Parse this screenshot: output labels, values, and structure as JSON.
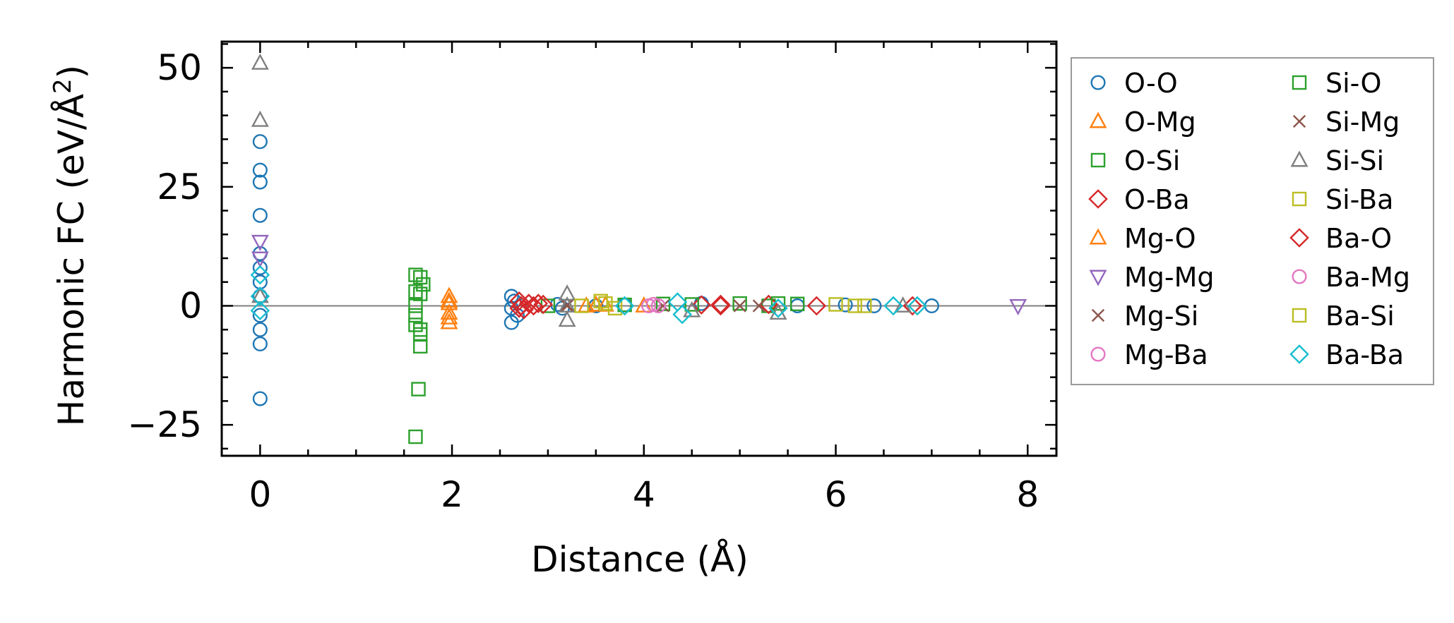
{
  "chart_data": {
    "type": "scatter",
    "title": "",
    "xlabel": "Distance (Å)",
    "ylabel_prefix": "Harmonic FC (eV/Å",
    "ylabel_sup": "2",
    "ylabel_suffix": ")",
    "xlim": [
      -0.4,
      8.3
    ],
    "ylim": [
      -31.5,
      55.5
    ],
    "xticks": [
      0,
      2,
      4,
      6,
      8
    ],
    "xtick_labels": [
      "0",
      "2",
      "4",
      "6",
      "8"
    ],
    "yticks": [
      50,
      25,
      0,
      -25
    ],
    "ytick_labels": [
      "50",
      "25",
      "0",
      "−25"
    ],
    "zero_line": true,
    "grid": false,
    "legend_position": "outside-right",
    "series": [
      {
        "name": "O-O",
        "marker": "circle",
        "color": "#1f77b4",
        "points": [
          [
            0,
            34.5
          ],
          [
            0,
            28.5
          ],
          [
            0,
            26
          ],
          [
            0,
            19
          ],
          [
            0,
            11
          ],
          [
            0,
            8
          ],
          [
            0,
            5
          ],
          [
            0,
            2
          ],
          [
            0,
            -2
          ],
          [
            0,
            -5
          ],
          [
            0,
            -8
          ],
          [
            0,
            -19.5
          ],
          [
            2.62,
            2
          ],
          [
            2.62,
            -0.5
          ],
          [
            2.62,
            -3.5
          ],
          [
            2.65,
            1
          ],
          [
            2.68,
            -2
          ],
          [
            3.1,
            0.3
          ],
          [
            3.15,
            -0.5
          ],
          [
            3.5,
            0
          ],
          [
            3.8,
            0.2
          ],
          [
            4.6,
            0.5
          ],
          [
            5.6,
            0
          ],
          [
            6.1,
            0.2
          ],
          [
            6.4,
            0
          ],
          [
            7.0,
            0
          ]
        ]
      },
      {
        "name": "O-Mg",
        "marker": "triangle-up",
        "color": "#ff7f0e",
        "points": [
          [
            1.97,
            2
          ],
          [
            1.97,
            0.5
          ],
          [
            1.97,
            -1.5
          ],
          [
            1.97,
            -3.5
          ],
          [
            3.4,
            0
          ],
          [
            3.6,
            0.2
          ],
          [
            4.0,
            0
          ]
        ]
      },
      {
        "name": "O-Si",
        "marker": "square",
        "color": "#2ca02c",
        "points": [
          [
            1.62,
            6.5
          ],
          [
            1.62,
            3
          ],
          [
            1.62,
            0
          ],
          [
            1.62,
            -4
          ],
          [
            1.62,
            -27.5
          ],
          [
            1.65,
            -17.5
          ],
          [
            1.67,
            6
          ],
          [
            1.67,
            2.5
          ],
          [
            1.67,
            -6
          ],
          [
            1.67,
            -8.5
          ],
          [
            1.7,
            4.5
          ],
          [
            3.0,
            0
          ],
          [
            3.8,
            0.2
          ],
          [
            4.2,
            0.4
          ],
          [
            5.0,
            0.5
          ],
          [
            5.3,
            0
          ],
          [
            5.6,
            0.4
          ]
        ]
      },
      {
        "name": "O-Ba",
        "marker": "diamond",
        "color": "#d62728",
        "points": [
          [
            2.7,
            1
          ],
          [
            2.72,
            0
          ],
          [
            2.75,
            -0.8
          ],
          [
            2.8,
            0.5
          ],
          [
            2.85,
            0
          ],
          [
            2.95,
            0.3
          ],
          [
            4.6,
            0.2
          ],
          [
            4.8,
            0
          ],
          [
            5.3,
            0.3
          ],
          [
            5.8,
            0
          ],
          [
            6.8,
            0
          ]
        ]
      },
      {
        "name": "Mg-O",
        "marker": "triangle-up",
        "color": "#ff7f0e",
        "points": [
          [
            1.97,
            1
          ],
          [
            1.97,
            -2.5
          ],
          [
            3.5,
            0.2
          ]
        ]
      },
      {
        "name": "Mg-Mg",
        "marker": "triangle-down",
        "color": "#9467bd",
        "points": [
          [
            0,
            13.5
          ],
          [
            0,
            10
          ],
          [
            7.9,
            0
          ]
        ]
      },
      {
        "name": "Mg-Si",
        "marker": "x",
        "color": "#8c564b",
        "points": [
          [
            3.2,
            0
          ],
          [
            4.2,
            0
          ],
          [
            5.2,
            0
          ]
        ]
      },
      {
        "name": "Mg-Ba",
        "marker": "circle",
        "color": "#e377c2",
        "points": [
          [
            4.05,
            0
          ],
          [
            4.15,
            0
          ]
        ]
      },
      {
        "name": "Si-O",
        "marker": "square",
        "color": "#2ca02c",
        "points": [
          [
            1.62,
            -2
          ],
          [
            1.67,
            -5
          ],
          [
            4.5,
            0.3
          ],
          [
            5.4,
            0.5
          ]
        ]
      },
      {
        "name": "Si-Mg",
        "marker": "x",
        "color": "#8c564b",
        "points": [
          [
            3.2,
            0.2
          ],
          [
            5.0,
            0
          ]
        ]
      },
      {
        "name": "Si-Si",
        "marker": "triangle-up",
        "color": "#7f7f7f",
        "points": [
          [
            0,
            51
          ],
          [
            0,
            39
          ],
          [
            0,
            2
          ],
          [
            3.2,
            2.5
          ],
          [
            3.2,
            -3
          ],
          [
            3.2,
            0
          ],
          [
            4.5,
            -1
          ],
          [
            5.4,
            -1.5
          ],
          [
            6.7,
            0
          ]
        ]
      },
      {
        "name": "Si-Ba",
        "marker": "square",
        "color": "#bcbd22",
        "points": [
          [
            3.35,
            0
          ],
          [
            3.55,
            1
          ],
          [
            3.7,
            -0.5
          ],
          [
            6.0,
            0.3
          ],
          [
            6.3,
            0
          ]
        ]
      },
      {
        "name": "Ba-O",
        "marker": "diamond",
        "color": "#d62728",
        "points": [
          [
            2.7,
            -0.5
          ],
          [
            2.9,
            0.5
          ],
          [
            4.8,
            0.3
          ]
        ]
      },
      {
        "name": "Ba-Mg",
        "marker": "circle",
        "color": "#e377c2",
        "points": [
          [
            4.1,
            0.3
          ]
        ]
      },
      {
        "name": "Ba-Si",
        "marker": "square",
        "color": "#bcbd22",
        "points": [
          [
            3.6,
            0.5
          ],
          [
            6.2,
            0
          ]
        ]
      },
      {
        "name": "Ba-Ba",
        "marker": "diamond",
        "color": "#17becf",
        "points": [
          [
            0,
            6.5
          ],
          [
            0,
            2
          ],
          [
            0,
            -1
          ],
          [
            3.8,
            0
          ],
          [
            4.35,
            0.8
          ],
          [
            4.4,
            -1.8
          ],
          [
            5.4,
            -0.5
          ],
          [
            6.6,
            0
          ],
          [
            6.85,
            0
          ]
        ]
      }
    ]
  }
}
